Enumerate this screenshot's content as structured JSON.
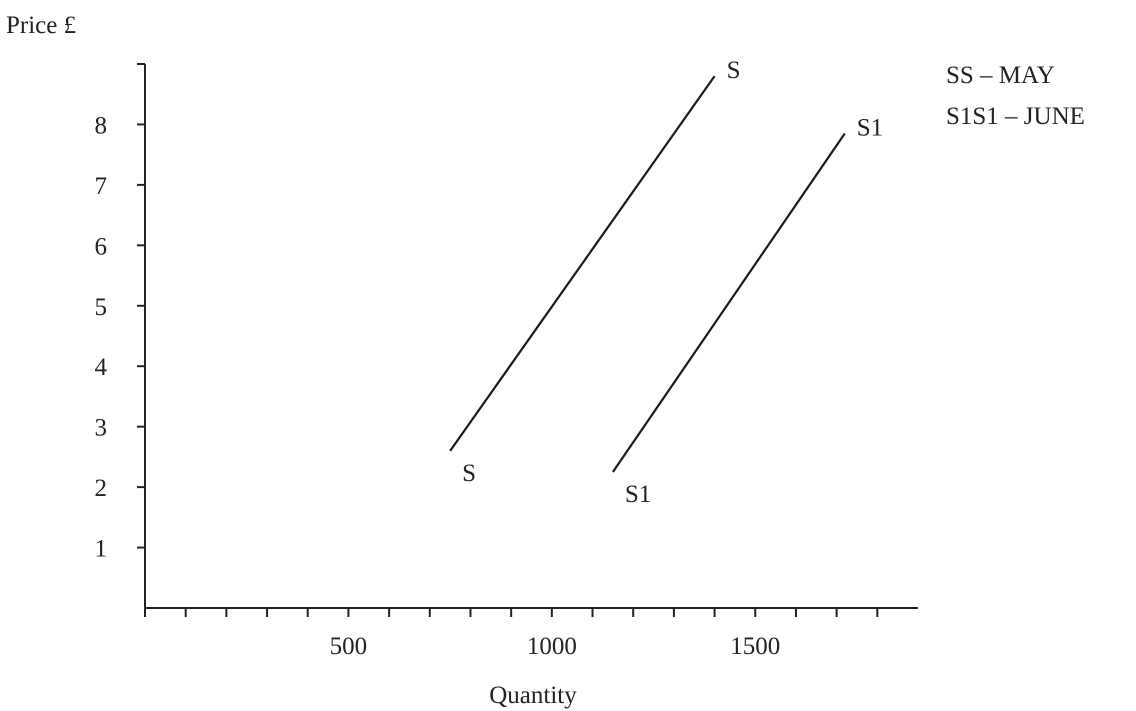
{
  "chart_data": {
    "type": "line",
    "ylabel": "Price £",
    "xlabel": "Quantity",
    "xlim": [
      0,
      1900
    ],
    "ylim": [
      0,
      9
    ],
    "x_ticks": [
      500,
      1000,
      1500
    ],
    "y_ticks": [
      1,
      2,
      3,
      4,
      5,
      6,
      7,
      8
    ],
    "x_minor_tick_step": 100,
    "grid": false,
    "series": [
      {
        "end_labels": [
          "S",
          "S"
        ],
        "points": [
          [
            750,
            2.6
          ],
          [
            1400,
            8.8
          ]
        ]
      },
      {
        "end_labels": [
          "S1",
          "S1"
        ],
        "points": [
          [
            1150,
            2.25
          ],
          [
            1720,
            7.85
          ]
        ]
      }
    ],
    "legend": {
      "position": "top-right",
      "entries": [
        "SS – MAY",
        "S1S1 – JUNE"
      ]
    }
  }
}
